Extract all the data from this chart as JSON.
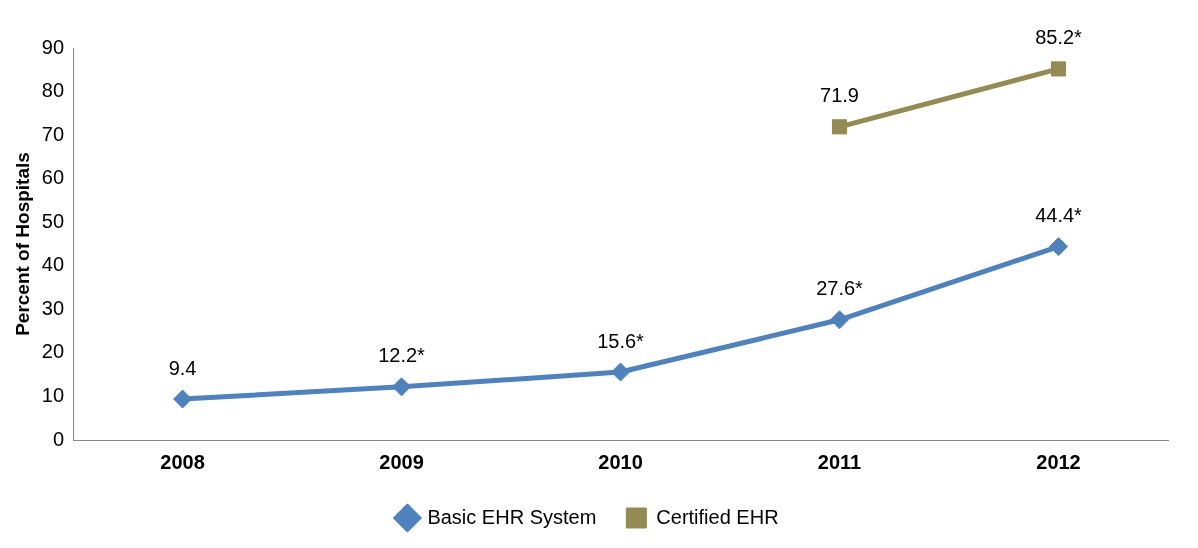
{
  "chart_data": {
    "type": "line",
    "ylabel": "Percent of Hospitals",
    "categories": [
      "2008",
      "2009",
      "2010",
      "2011",
      "2012"
    ],
    "series": [
      {
        "name": "Basic EHR System",
        "color": "#4f81bd",
        "marker": "diamond",
        "values": [
          9.4,
          12.2,
          15.6,
          27.6,
          44.4
        ],
        "value_labels": [
          "9.4",
          "12.2*",
          "15.6*",
          "27.6*",
          "44.4*"
        ]
      },
      {
        "name": "Certified EHR",
        "color": "#948a54",
        "marker": "square",
        "values": [
          null,
          null,
          null,
          71.9,
          85.2
        ],
        "value_labels": [
          null,
          null,
          null,
          "71.9",
          "85.2*"
        ]
      }
    ],
    "ylim": [
      0,
      90
    ],
    "yticks": [
      0,
      10,
      20,
      30,
      40,
      50,
      60,
      70,
      80,
      90
    ],
    "grid": false,
    "legend": "bottom"
  }
}
